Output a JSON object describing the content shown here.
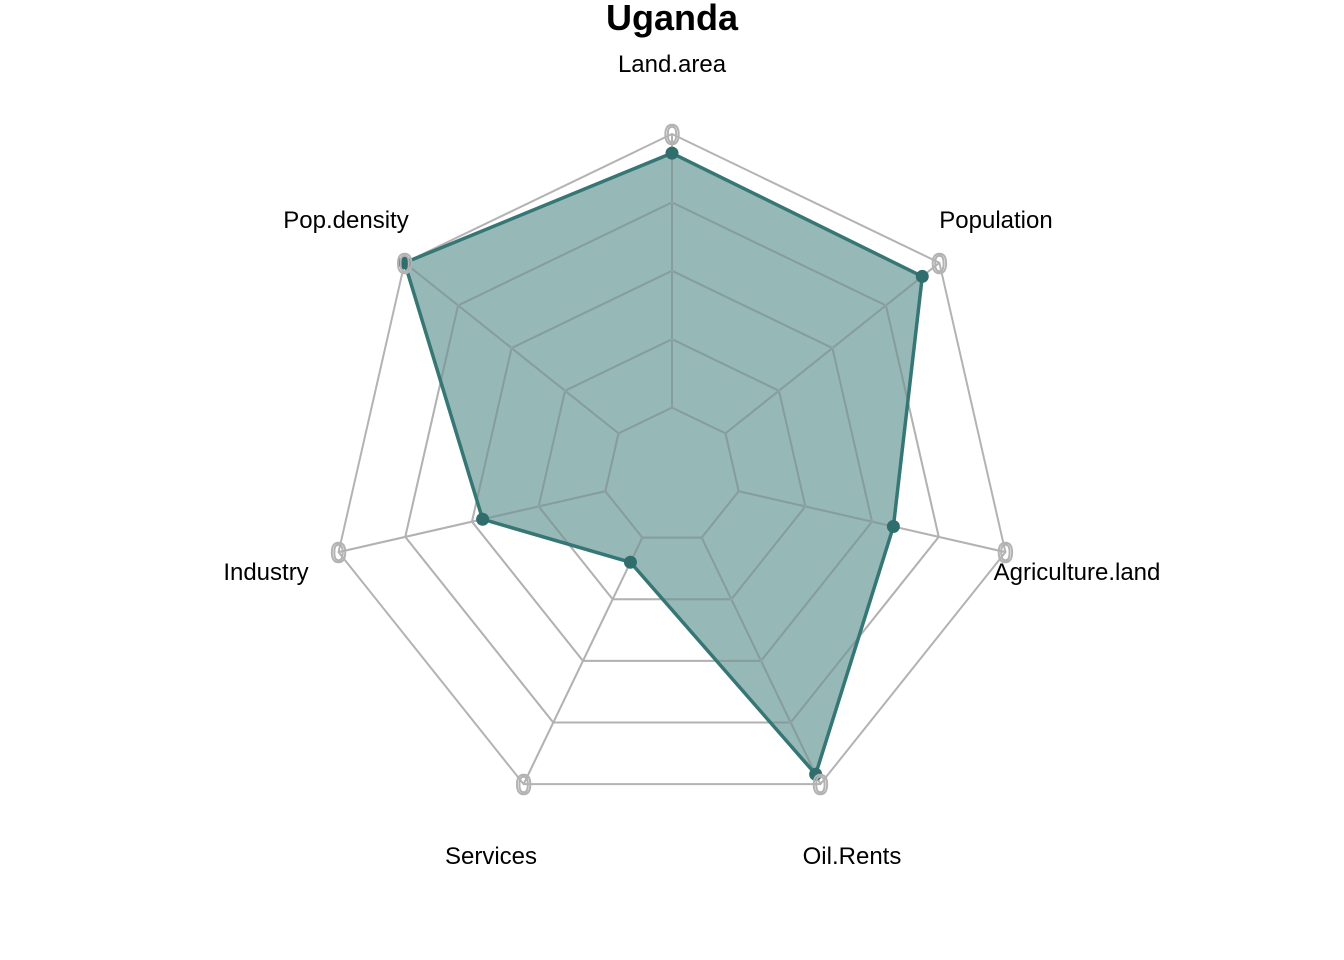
{
  "chart_data": {
    "type": "radar",
    "title": "Uganda",
    "axes": [
      "Land.area",
      "Population",
      "Agriculture.land",
      "Oil.Rents",
      "Services",
      "Industry",
      "Pop.density"
    ],
    "values": [
      0.93,
      0.92,
      0.58,
      0.96,
      0.1,
      0.46,
      1.0
    ],
    "range": [
      0,
      1
    ],
    "grid_levels": 5,
    "tick_labels": [
      "0",
      "0",
      "0",
      "0",
      "0",
      "0",
      "0"
    ],
    "grid": true,
    "colors": {
      "fill": "#2e7372",
      "fill_opacity": 0.5,
      "line": "#367776",
      "point": "#2f6e6d",
      "grid": "#b3b3b3",
      "tick": "#b3b3b3"
    }
  }
}
